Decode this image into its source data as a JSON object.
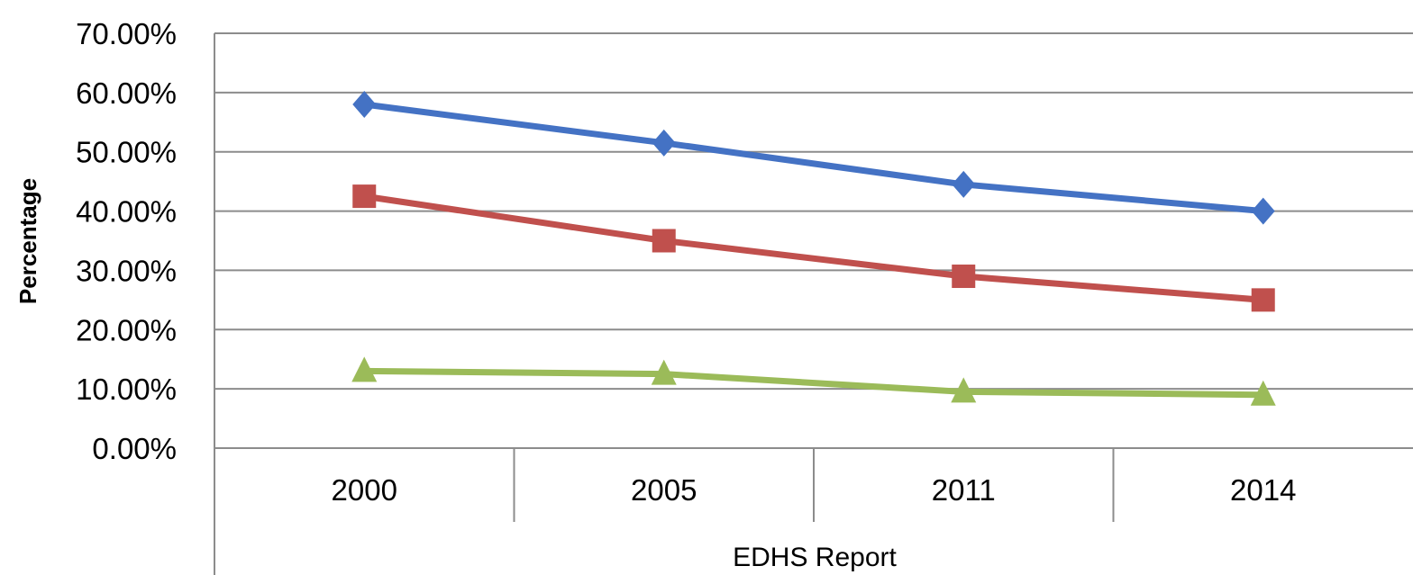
{
  "chart_data": {
    "type": "line",
    "title": "",
    "xlabel": "EDHS Report",
    "ylabel": "Percentage",
    "categories": [
      "2000",
      "2005",
      "2011",
      "2014"
    ],
    "ylim": [
      0,
      70
    ],
    "yticks": [
      "0.00%",
      "10.00%",
      "20.00%",
      "30.00%",
      "40.00%",
      "50.00%",
      "60.00%",
      "70.00%"
    ],
    "grid": true,
    "series": [
      {
        "color": "#4472C4",
        "marker": "diamond",
        "values": [
          58.0,
          51.5,
          44.5,
          40.0
        ]
      },
      {
        "color": "#C0504D",
        "marker": "square",
        "values": [
          42.5,
          35.0,
          29.0,
          25.0
        ]
      },
      {
        "color": "#9BBB59",
        "marker": "triangle",
        "values": [
          13.0,
          12.5,
          9.5,
          9.0
        ]
      }
    ]
  }
}
